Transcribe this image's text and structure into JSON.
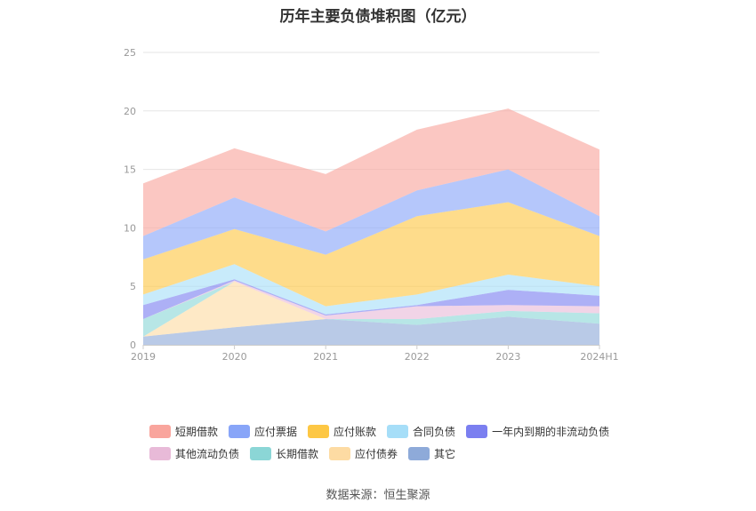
{
  "title": "历年主要负债堆积图（亿元）",
  "source": "数据来源：恒生聚源",
  "chart_data": {
    "type": "area",
    "stacked": true,
    "categories": [
      "2019",
      "2020",
      "2021",
      "2022",
      "2023",
      "2024H1"
    ],
    "y_ticks": [
      "0",
      "5",
      "10",
      "15",
      "20",
      "25"
    ],
    "ylim": [
      0,
      25
    ],
    "grid": true,
    "legend_position": "bottom",
    "series": [
      {
        "name": "其它",
        "color": "#8eaad9",
        "values": [
          0.7,
          1.5,
          2.2,
          1.7,
          2.4,
          1.8
        ]
      },
      {
        "name": "应付债券",
        "color": "#fddba3",
        "values": [
          0.0,
          3.9,
          0.0,
          0.0,
          0.0,
          0.0
        ]
      },
      {
        "name": "长期借款",
        "color": "#8bd6d6",
        "values": [
          1.5,
          0.0,
          0.0,
          0.5,
          0.5,
          0.9
        ]
      },
      {
        "name": "其他流动负债",
        "color": "#e8bad8",
        "values": [
          0.0,
          0.1,
          0.3,
          1.1,
          0.5,
          0.6
        ]
      },
      {
        "name": "一年内到期的非流动负债",
        "color": "#7b7ff0",
        "values": [
          1.2,
          0.1,
          0.1,
          0.1,
          1.3,
          0.9
        ]
      },
      {
        "name": "合同负债",
        "color": "#a6def8",
        "values": [
          0.9,
          1.3,
          0.7,
          0.9,
          1.3,
          0.8
        ]
      },
      {
        "name": "应付账款",
        "color": "#fdc744",
        "values": [
          3.0,
          3.0,
          4.4,
          6.7,
          6.2,
          4.3
        ]
      },
      {
        "name": "应付票据",
        "color": "#88a5f8",
        "values": [
          2.0,
          2.7,
          2.0,
          2.2,
          2.8,
          1.7
        ]
      },
      {
        "name": "短期借款",
        "color": "#f9a59d",
        "values": [
          4.5,
          4.2,
          4.9,
          5.2,
          5.2,
          5.7
        ]
      }
    ],
    "legend_rows": [
      [
        "短期借款",
        "应付票据",
        "应付账款",
        "合同负债",
        "一年内到期的非流动负债"
      ],
      [
        "其他流动负债",
        "长期借款",
        "应付债券",
        "其它"
      ]
    ]
  }
}
